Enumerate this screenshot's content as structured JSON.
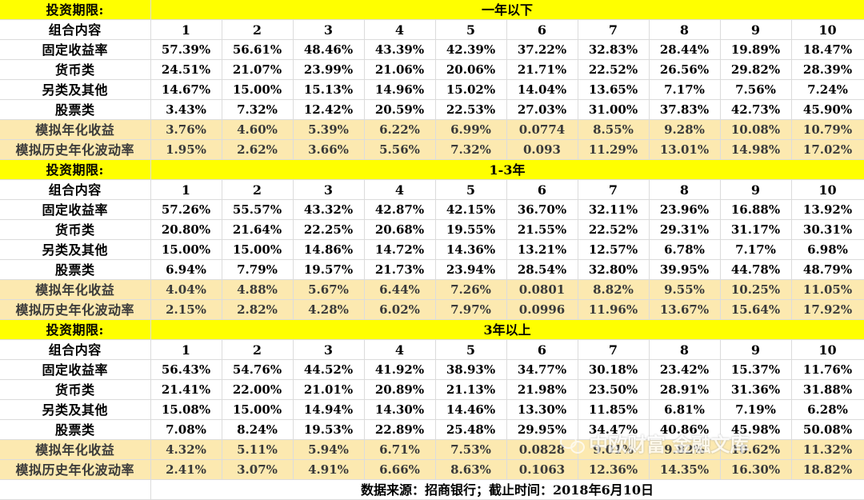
{
  "sections": [
    {
      "band_label": "投资期限:",
      "period": "一年以下",
      "header_label": "组合内容",
      "portfolios": [
        "1",
        "2",
        "3",
        "4",
        "5",
        "6",
        "7",
        "8",
        "9",
        "10"
      ],
      "rows": [
        {
          "label": "固定收益率",
          "values": [
            "57.39%",
            "56.61%",
            "48.46%",
            "43.39%",
            "42.39%",
            "37.22%",
            "32.83%",
            "28.44%",
            "19.89%",
            "18.47%"
          ]
        },
        {
          "label": "货币类",
          "values": [
            "24.51%",
            "21.07%",
            "23.99%",
            "21.06%",
            "20.06%",
            "21.71%",
            "22.52%",
            "26.56%",
            "29.82%",
            "28.39%"
          ]
        },
        {
          "label": "另类及其他",
          "values": [
            "14.67%",
            "15.00%",
            "15.13%",
            "14.96%",
            "15.02%",
            "14.04%",
            "13.65%",
            "7.17%",
            "7.56%",
            "7.24%"
          ]
        },
        {
          "label": "股票类",
          "values": [
            "3.43%",
            "7.32%",
            "12.42%",
            "20.59%",
            "22.53%",
            "27.03%",
            "31.00%",
            "37.83%",
            "42.73%",
            "45.90%"
          ]
        }
      ],
      "sim_rows": [
        {
          "label": "模拟年化收益",
          "values": [
            "3.76%",
            "4.60%",
            "5.39%",
            "6.22%",
            "6.99%",
            "0.0774",
            "8.55%",
            "9.28%",
            "10.08%",
            "10.79%"
          ]
        },
        {
          "label": "模拟历史年化波动率",
          "values": [
            "1.95%",
            "2.62%",
            "3.66%",
            "5.56%",
            "7.32%",
            "0.093",
            "11.29%",
            "13.01%",
            "14.98%",
            "17.02%"
          ]
        }
      ]
    },
    {
      "band_label": "投资期限:",
      "period": "1-3年",
      "header_label": "组合内容",
      "portfolios": [
        "1",
        "2",
        "3",
        "4",
        "5",
        "6",
        "7",
        "8",
        "9",
        "10"
      ],
      "rows": [
        {
          "label": "固定收益率",
          "values": [
            "57.26%",
            "55.57%",
            "43.32%",
            "42.87%",
            "42.15%",
            "36.70%",
            "32.11%",
            "23.96%",
            "16.88%",
            "13.92%"
          ]
        },
        {
          "label": "货币类",
          "values": [
            "20.80%",
            "21.64%",
            "22.25%",
            "20.68%",
            "19.55%",
            "21.55%",
            "22.52%",
            "29.31%",
            "31.17%",
            "30.31%"
          ]
        },
        {
          "label": "另类及其他",
          "values": [
            "15.00%",
            "15.00%",
            "14.86%",
            "14.72%",
            "14.36%",
            "13.21%",
            "12.57%",
            "6.78%",
            "7.17%",
            "6.98%"
          ]
        },
        {
          "label": "股票类",
          "values": [
            "6.94%",
            "7.79%",
            "19.57%",
            "21.73%",
            "23.94%",
            "28.54%",
            "32.80%",
            "39.95%",
            "44.78%",
            "48.79%"
          ]
        }
      ],
      "sim_rows": [
        {
          "label": "模拟年化收益",
          "values": [
            "4.04%",
            "4.88%",
            "5.67%",
            "6.44%",
            "7.26%",
            "0.0801",
            "8.82%",
            "9.55%",
            "10.25%",
            "11.05%"
          ]
        },
        {
          "label": "模拟历史年化波动率",
          "values": [
            "2.15%",
            "2.82%",
            "4.28%",
            "6.02%",
            "7.97%",
            "0.0996",
            "11.96%",
            "13.67%",
            "15.64%",
            "17.92%"
          ]
        }
      ]
    },
    {
      "band_label": "投资期限:",
      "period": "3年以上",
      "header_label": "组合内容",
      "portfolios": [
        "1",
        "2",
        "3",
        "4",
        "5",
        "6",
        "7",
        "8",
        "9",
        "10"
      ],
      "rows": [
        {
          "label": "固定收益率",
          "values": [
            "56.43%",
            "54.76%",
            "44.52%",
            "41.92%",
            "38.93%",
            "34.77%",
            "30.18%",
            "23.42%",
            "15.37%",
            "11.76%"
          ]
        },
        {
          "label": "货币类",
          "values": [
            "21.41%",
            "22.00%",
            "21.01%",
            "20.89%",
            "21.13%",
            "21.98%",
            "23.50%",
            "28.91%",
            "31.36%",
            "31.88%"
          ]
        },
        {
          "label": "另类及其他",
          "values": [
            "15.08%",
            "15.00%",
            "14.94%",
            "14.30%",
            "14.46%",
            "13.30%",
            "11.85%",
            "6.81%",
            "7.19%",
            "6.28%"
          ]
        },
        {
          "label": "股票类",
          "values": [
            "7.08%",
            "8.24%",
            "19.53%",
            "22.89%",
            "25.48%",
            "29.95%",
            "34.47%",
            "40.86%",
            "45.98%",
            "50.08%"
          ]
        }
      ],
      "sim_rows": [
        {
          "label": "模拟年化收益",
          "values": [
            "4.32%",
            "5.11%",
            "5.94%",
            "6.71%",
            "7.53%",
            "0.0828",
            "9.01%",
            "9.82%",
            "10.62%",
            "11.32%"
          ]
        },
        {
          "label": "模拟历史年化波动率",
          "values": [
            "2.41%",
            "3.07%",
            "4.91%",
            "6.66%",
            "8.63%",
            "0.1063",
            "12.36%",
            "14.35%",
            "16.30%",
            "18.82%"
          ]
        }
      ]
    }
  ],
  "source_note": "数据来源：招商银行；截止时间：2018年6月10日",
  "watermark": "中欧财富 金融文库",
  "colors": {
    "band": "#ffff00",
    "sim_fill": "#fce9b0"
  }
}
